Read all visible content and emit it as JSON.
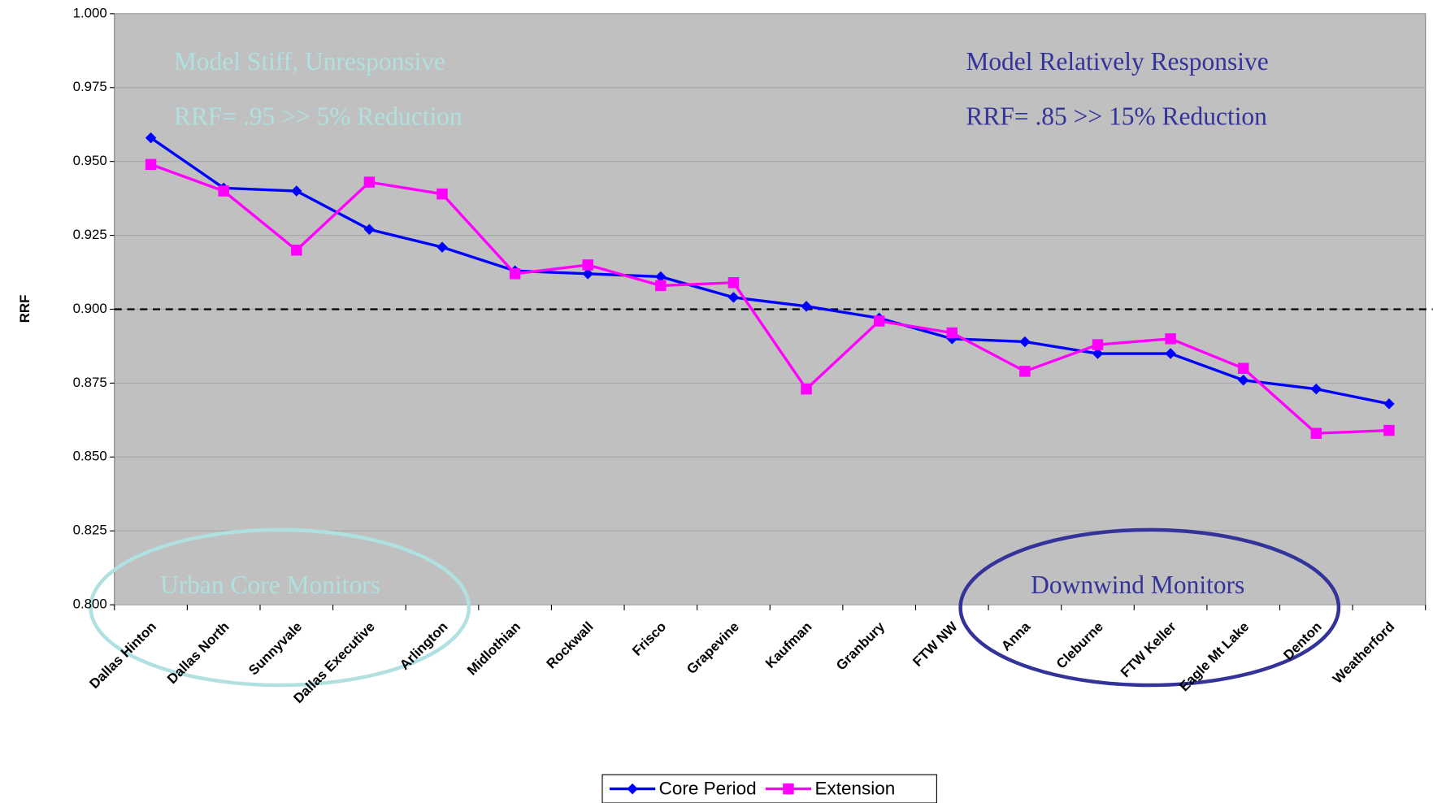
{
  "chart_data": {
    "type": "line",
    "y_label": "RRF",
    "categories": [
      "Dallas Hinton",
      "Dallas North",
      "Sunnyvale",
      "Dallas Executive",
      "Arlington",
      "Midlothian",
      "Rockwall",
      "Frisco",
      "Grapevine",
      "Kaufman",
      "Granbury",
      "FTW NW",
      "Anna",
      "Cleburne",
      "FTW Keller",
      "Eagle Mt Lake",
      "Denton",
      "Weatherford"
    ],
    "series": [
      {
        "name": "Core Period",
        "color": "#0000ff",
        "marker": "diamond",
        "values": [
          0.958,
          0.941,
          0.94,
          0.927,
          0.921,
          0.913,
          0.912,
          0.911,
          0.904,
          0.901,
          0.897,
          0.89,
          0.889,
          0.885,
          0.885,
          0.876,
          0.873,
          0.868
        ]
      },
      {
        "name": "Extension",
        "color": "#ff00ff",
        "marker": "square",
        "values": [
          0.949,
          0.94,
          0.92,
          0.943,
          0.939,
          0.912,
          0.915,
          0.908,
          0.909,
          0.873,
          0.896,
          0.892,
          0.879,
          0.888,
          0.89,
          0.88,
          0.858,
          0.859
        ]
      }
    ],
    "ylim": [
      0.8,
      1.0
    ],
    "yticks": [
      {
        "value": 0.8,
        "label": "0.800"
      },
      {
        "value": 0.825,
        "label": "0.825"
      },
      {
        "value": 0.85,
        "label": "0.850"
      },
      {
        "value": 0.875,
        "label": "0.875"
      },
      {
        "value": 0.9,
        "label": "0.900"
      },
      {
        "value": 0.925,
        "label": "0.925"
      },
      {
        "value": 0.95,
        "label": "0.950"
      },
      {
        "value": 0.975,
        "label": "0.975"
      },
      {
        "value": 1.0,
        "label": "1.000"
      }
    ],
    "grid": true,
    "reference_line": 0.9,
    "annotations": [
      "Model Stiff, Unresponsive",
      "RRF= .95 >> 5% Reduction",
      "Model Relatively Responsive",
      "RRF= .85 >> 15% Reduction",
      "Urban Core Monitors",
      "Downwind Monitors"
    ],
    "legend": "bottom"
  }
}
